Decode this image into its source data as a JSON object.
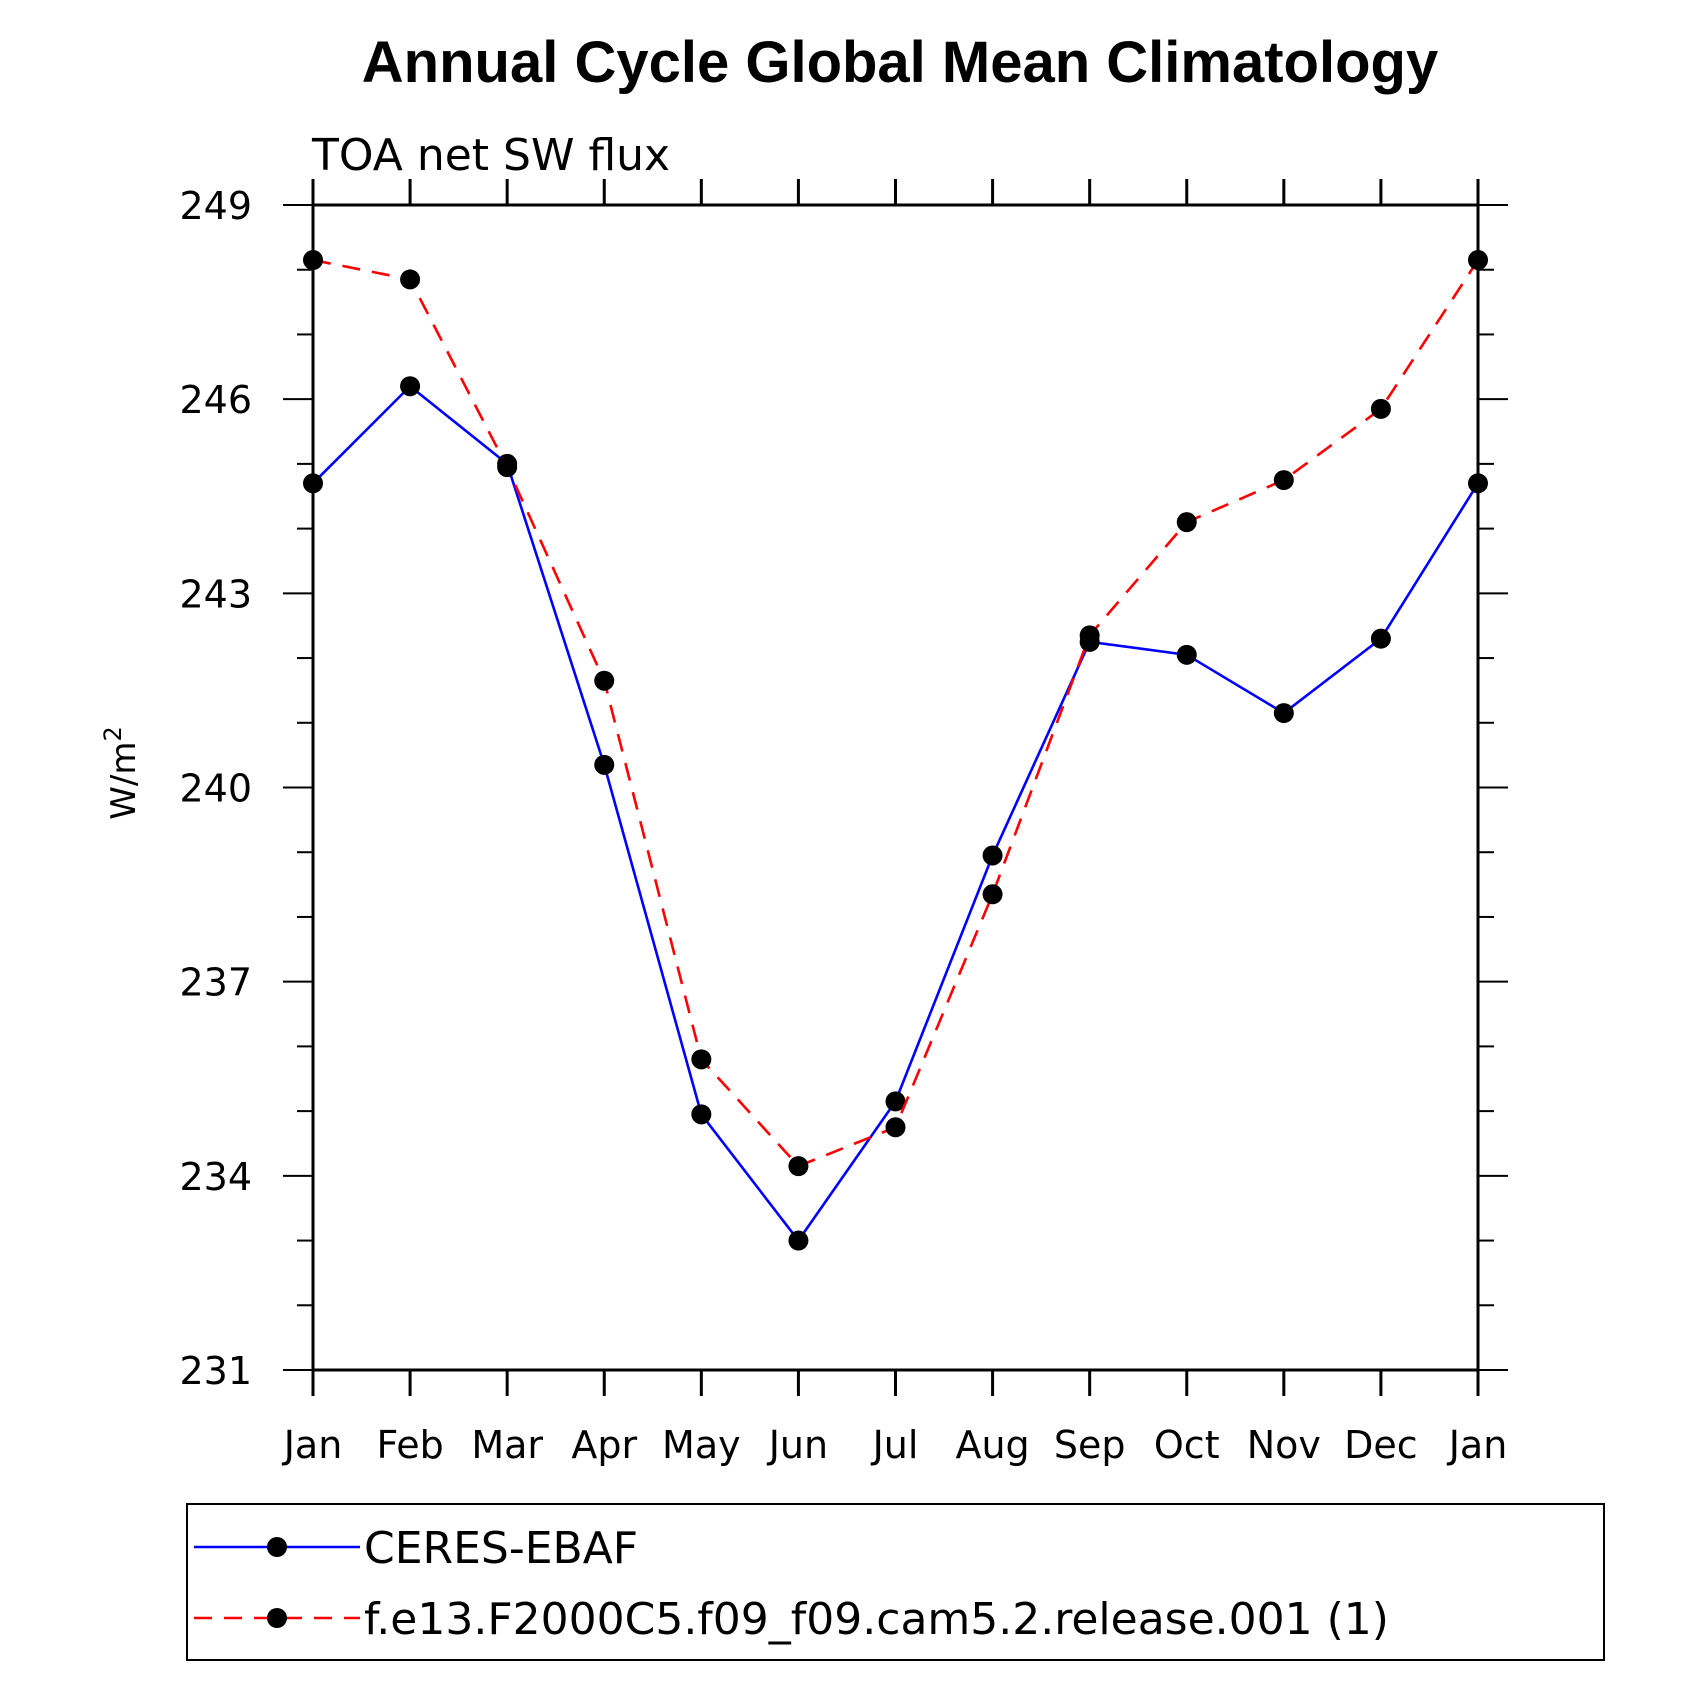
{
  "chart_data": {
    "type": "line",
    "title": "Annual Cycle Global Mean Climatology",
    "subtitle": "TOA net SW flux",
    "ylabel": "W/m",
    "ylabel_superscript": "2",
    "xlabel": "",
    "categories": [
      "Jan",
      "Feb",
      "Mar",
      "Apr",
      "May",
      "Jun",
      "Jul",
      "Aug",
      "Sep",
      "Oct",
      "Nov",
      "Dec",
      "Jan"
    ],
    "ylim": [
      231,
      249
    ],
    "yticks": [
      231,
      234,
      237,
      240,
      243,
      246,
      249
    ],
    "series": [
      {
        "name": "CERES-EBAF",
        "color": "#0000ff",
        "style": "solid",
        "values": [
          244.7,
          246.2,
          245.0,
          240.35,
          234.95,
          233.0,
          235.15,
          238.95,
          242.25,
          242.05,
          241.15,
          242.3,
          244.7
        ]
      },
      {
        "name": "f.e13.F2000C5.f09_f09.cam5.2.release.001 (1)",
        "color": "#ff0000",
        "style": "dashed",
        "values": [
          248.15,
          247.85,
          244.95,
          241.65,
          235.8,
          234.15,
          234.75,
          238.35,
          242.35,
          244.1,
          244.75,
          245.85,
          248.15
        ]
      }
    ],
    "legend_placement": "bottom"
  }
}
